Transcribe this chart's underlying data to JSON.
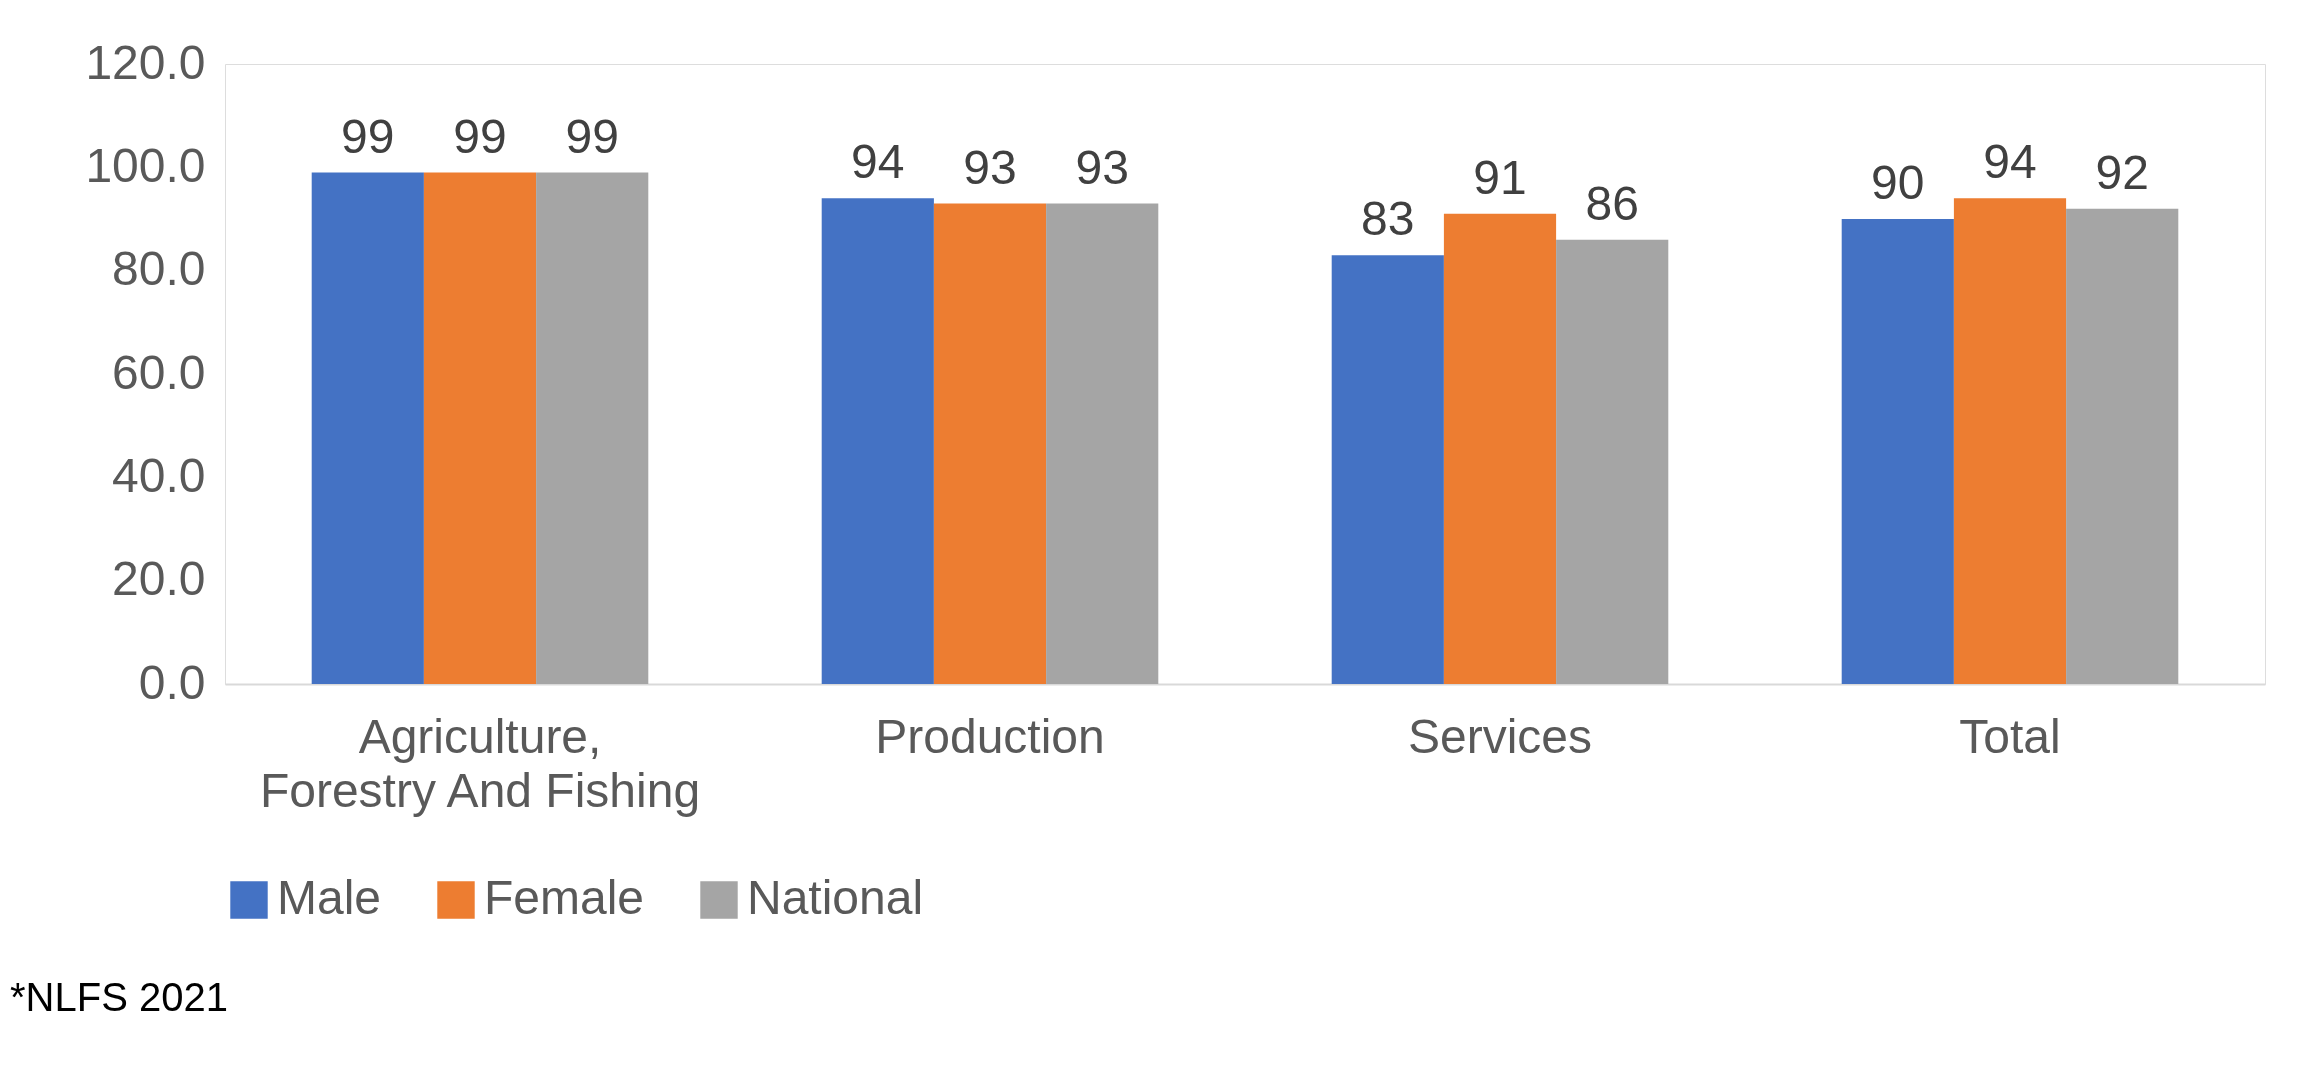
{
  "chart_data": {
    "type": "bar",
    "categories": [
      "Agriculture, Forestry And Fishing",
      "Production",
      "Services",
      "Total"
    ],
    "series": [
      {
        "name": "Male",
        "color": "#4472c4",
        "values": [
          99,
          94,
          83,
          90
        ]
      },
      {
        "name": "Female",
        "color": "#ed7d31",
        "values": [
          99,
          93,
          91,
          94
        ]
      },
      {
        "name": "National",
        "color": "#a5a5a5",
        "values": [
          99,
          93,
          86,
          92
        ]
      }
    ],
    "ylim": [
      0,
      120
    ],
    "yticks": [
      {
        "value": 0,
        "label": "0.0"
      },
      {
        "value": 20,
        "label": "20.0"
      },
      {
        "value": 40,
        "label": "40.0"
      },
      {
        "value": 60,
        "label": "60.0"
      },
      {
        "value": 80,
        "label": "80.0"
      },
      {
        "value": 100,
        "label": "100.0"
      },
      {
        "value": 120,
        "label": "120.0"
      }
    ],
    "data_labels": true,
    "grid": false,
    "legend": "bottom",
    "annotations": [
      "*NLFS 2021"
    ]
  }
}
